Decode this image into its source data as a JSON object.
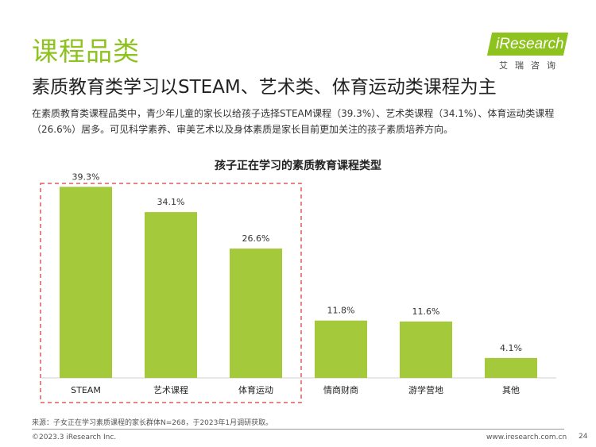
{
  "page": {
    "section_title": "课程品类",
    "headline": "素质教育类学习以STEAM、艺术类、体育运动类课程为主",
    "description": "在素质教育类课程品类中，青少年儿童的家长以给孩子选择STEAM课程（39.3%）、艺术类课程（34.1%）、体育运动类课程（26.6%）居多。可见科学素养、审美艺术以及身体素质是家长目前更加关注的孩子素质培养方向。",
    "logo_text": "iResearch",
    "logo_cn": "艾瑞咨询",
    "source": "来源：子女正在学习素质课程的家长群体N=268，于2023年1月调研获取。",
    "copyright": "©2023.3 iResearch Inc.",
    "website": "www.iresearch.com.cn",
    "page_number": "24"
  },
  "colors": {
    "accent": "#8dc21f",
    "bar": "#a4c93a",
    "highlight_border": "#e05a5a"
  },
  "chart_data": {
    "type": "bar",
    "title": "孩子正在学习的素质教育课程类型",
    "categories": [
      "STEAM",
      "艺术课程",
      "体育运动",
      "情商财商",
      "游学营地",
      "其他"
    ],
    "values": [
      39.3,
      34.1,
      26.6,
      11.8,
      11.6,
      4.1
    ],
    "value_labels": [
      "39.3%",
      "34.1%",
      "26.6%",
      "11.8%",
      "11.6%",
      "4.1%"
    ],
    "unit": "%",
    "ylim": [
      0,
      40
    ],
    "grid": false,
    "legend": "none",
    "highlight_categories": [
      "STEAM",
      "艺术课程",
      "体育运动"
    ]
  }
}
